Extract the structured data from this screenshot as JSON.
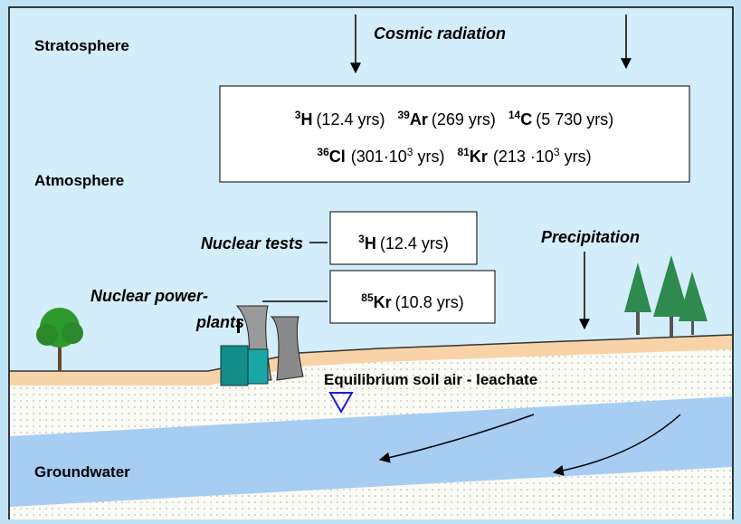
{
  "labels": {
    "stratosphere": "Stratosphere",
    "cosmic": "Cosmic radiation",
    "atmosphere": "Atmosphere",
    "nuclear_tests": "Nuclear tests",
    "power_plants": [
      "Nuclear power-",
      "plants"
    ],
    "precipitation": "Precipitation",
    "equilibrium": "Equilibrium soil air - leachate",
    "groundwater": "Groundwater"
  },
  "cosmogenic": [
    [
      {
        "mass": "3",
        "symbol": "H",
        "half_life": "(12.4 yrs)"
      },
      {
        "mass": "39",
        "symbol": "Ar",
        "half_life": "(269 yrs)"
      },
      {
        "mass": "14",
        "symbol": "C",
        "half_life": "(5 730 yrs)"
      }
    ],
    [
      {
        "mass": "36",
        "symbol": "Cl",
        "half_life": [
          "(301·10",
          "3",
          "  yrs)"
        ]
      },
      {
        "mass": "81",
        "symbol": "Kr",
        "half_life": [
          "(213 ·10",
          "3",
          "  yrs)"
        ]
      }
    ]
  ],
  "tests": {
    "mass": "3",
    "symbol": "H",
    "half_life": "(12.4 yrs)"
  },
  "plants": {
    "mass": "85",
    "symbol": "Kr",
    "half_life": "(10.8 yrs)"
  }
}
